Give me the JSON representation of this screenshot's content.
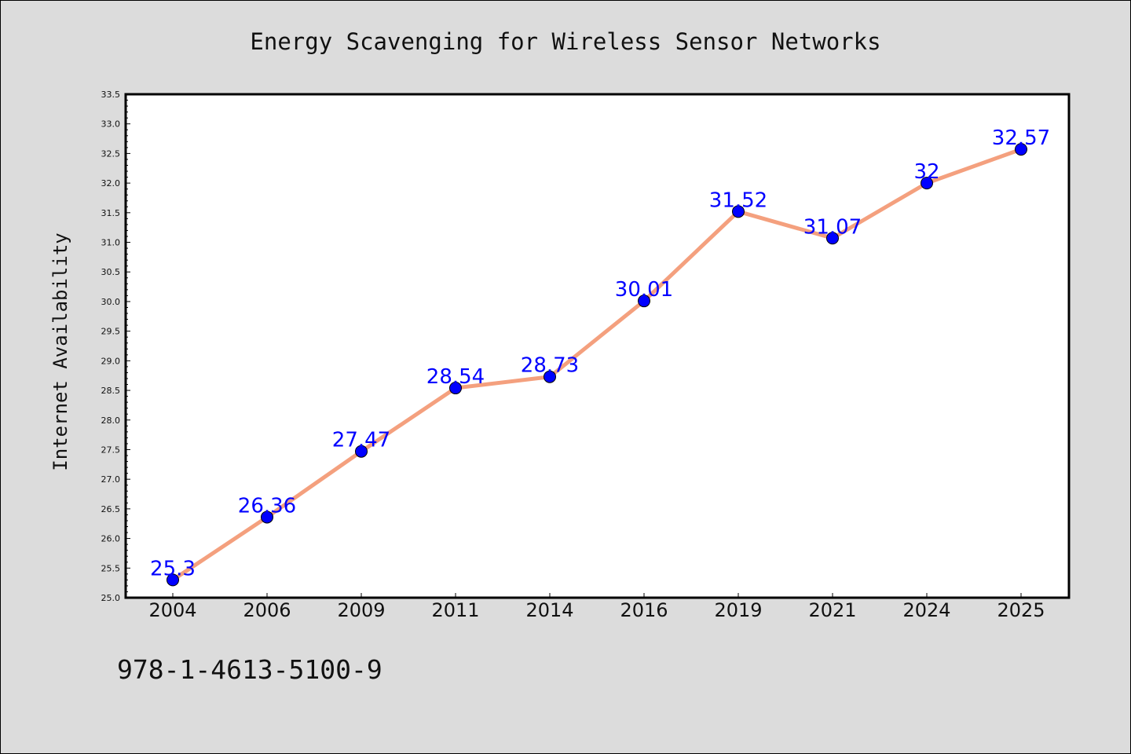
{
  "chart_data": {
    "type": "line",
    "title": "Energy Scavenging for Wireless Sensor Networks",
    "xlabel": "",
    "ylabel": "Internet Availability",
    "categories": [
      "2004",
      "2006",
      "2009",
      "2011",
      "2014",
      "2016",
      "2019",
      "2021",
      "2024",
      "2025"
    ],
    "values": [
      25.3,
      26.36,
      27.47,
      28.54,
      28.73,
      30.01,
      31.52,
      31.07,
      32,
      32.57
    ],
    "data_labels": [
      "25.3",
      "26.36",
      "27.47",
      "28.54",
      "28.73",
      "30.01",
      "31.52",
      "31.07",
      "32",
      "32.57"
    ],
    "ylim": [
      25.0,
      33.5
    ],
    "yticks": [
      "25.0",
      "25.5",
      "26.0",
      "26.5",
      "27.0",
      "27.5",
      "28.0",
      "28.5",
      "29.0",
      "29.5",
      "30.0",
      "30.5",
      "31.0",
      "31.5",
      "32.0",
      "32.5",
      "33.0",
      "33.5"
    ],
    "grid": false,
    "colors": {
      "line": "#f4a07e",
      "marker": "#0000ff",
      "data_label": "#0000ff",
      "background": "#dcdcdc",
      "plot_background": "#ffffff"
    }
  },
  "footer": {
    "isbn": "978-1-4613-5100-9"
  }
}
